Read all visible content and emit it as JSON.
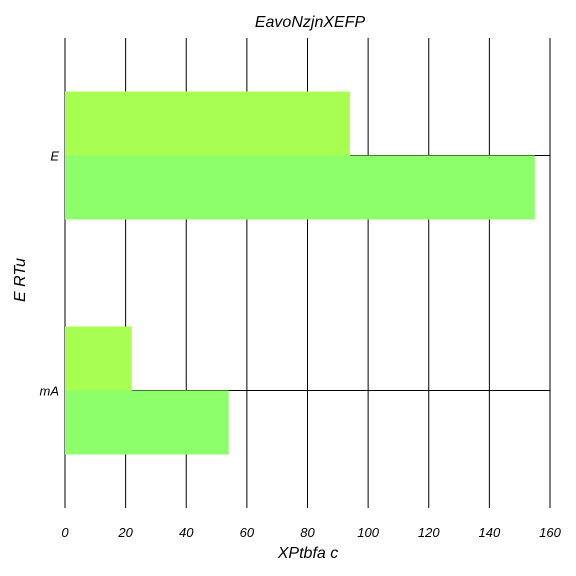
{
  "chart_data": {
    "type": "bar",
    "orientation": "horizontal",
    "title": "EavoNzjnXEFP",
    "xlabel": "XPtbfa c",
    "ylabel": "E RTu",
    "categories": [
      "E",
      "mA"
    ],
    "xlim": [
      0,
      160
    ],
    "x_ticks": [
      "0",
      "20",
      "40",
      "60",
      "80",
      "100",
      "120",
      "140",
      "160"
    ],
    "grid": true,
    "series": [
      {
        "values": [
          94,
          22
        ],
        "color": "#a8ff52"
      },
      {
        "values": [
          155,
          54
        ],
        "color": "#8cff6a"
      }
    ]
  }
}
